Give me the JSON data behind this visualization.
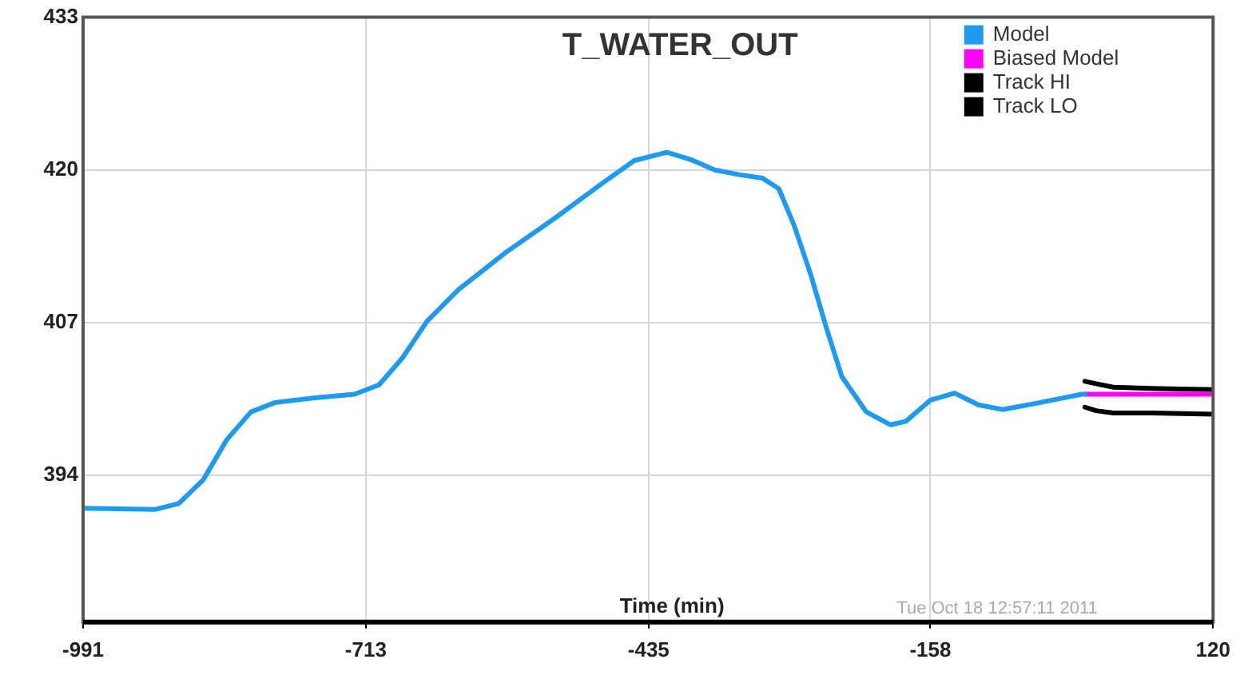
{
  "chart_data": {
    "type": "line",
    "title": "T_WATER_OUT",
    "xlabel": "Time (min)",
    "annotations": [
      "Tue Oct 18 12:57:11 2011"
    ],
    "xlim": [
      -991,
      120
    ],
    "xticks": [
      -991,
      -713,
      -435,
      -158,
      120
    ],
    "ylim": [
      381.5,
      433
    ],
    "yticks": [
      394,
      407,
      420,
      433
    ],
    "grid": true,
    "legend": "top right",
    "marker": "none",
    "line_style": "solid",
    "series": [
      {
        "name": "Model",
        "color": "#1e9bf0",
        "x": [
          -991,
          -920,
          -897,
          -873,
          -850,
          -826,
          -802,
          -763,
          -724,
          -700,
          -677,
          -653,
          -622,
          -575,
          -527,
          -480,
          -449,
          -417,
          -394,
          -370,
          -346,
          -323,
          -307,
          -292,
          -276,
          -260,
          -245,
          -221,
          -197,
          -182,
          -158,
          -134,
          -111,
          -87,
          -56,
          -9,
          -6
        ],
        "values": [
          391.2,
          391.1,
          391.6,
          393.6,
          397.0,
          399.4,
          400.2,
          400.6,
          400.9,
          401.7,
          404.0,
          407.1,
          409.8,
          413.0,
          415.9,
          418.9,
          420.8,
          421.5,
          420.9,
          420.0,
          419.6,
          419.3,
          418.4,
          415.3,
          411.2,
          406.5,
          402.4,
          399.4,
          398.3,
          398.6,
          400.4,
          401.0,
          400.0,
          399.6,
          400.1,
          400.9,
          400.9
        ]
      },
      {
        "name": "Biased Model",
        "color": "#ff00ff",
        "x": [
          -6,
          40,
          120
        ],
        "values": [
          400.9,
          400.9,
          400.9
        ]
      },
      {
        "name": "Track HI",
        "color": "#000000",
        "x": [
          -6,
          5,
          22,
          60,
          120
        ],
        "values": [
          402.0,
          401.8,
          401.5,
          401.4,
          401.3
        ]
      },
      {
        "name": "Track LO",
        "color": "#000000",
        "x": [
          -6,
          5,
          22,
          60,
          120
        ],
        "values": [
          399.8,
          399.5,
          399.3,
          399.3,
          399.2
        ]
      }
    ]
  }
}
